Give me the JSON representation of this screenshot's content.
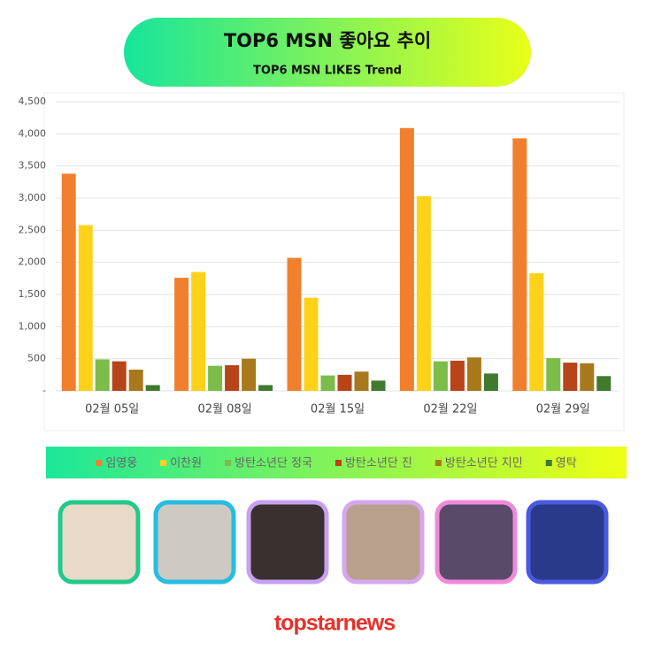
{
  "chart_data": {
    "type": "bar",
    "title": "TOP6 MSN 좋아요 추이",
    "subtitle": "TOP6 MSN LIKES Trend",
    "categories": [
      "02월 05일",
      "02월 08일",
      "02월 15일",
      "02월 22일",
      "02월 29일"
    ],
    "series": [
      {
        "name": "임영웅",
        "color": "#f0802e",
        "values": [
          3380,
          1760,
          2070,
          4090,
          3930
        ]
      },
      {
        "name": "이찬원",
        "color": "#ffd21a",
        "values": [
          2580,
          1850,
          1450,
          3030,
          1830
        ]
      },
      {
        "name": "방탄소년단 정국",
        "color": "#7cbc4a",
        "values": [
          490,
          390,
          240,
          460,
          510
        ]
      },
      {
        "name": "방탄소년단 진",
        "color": "#b8441a",
        "values": [
          460,
          400,
          250,
          470,
          440
        ]
      },
      {
        "name": "방탄소년단 지민",
        "color": "#a8781c",
        "values": [
          330,
          500,
          300,
          520,
          430
        ]
      },
      {
        "name": "영탁",
        "color": "#3f7a2e",
        "values": [
          90,
          90,
          160,
          270,
          230
        ]
      }
    ],
    "ylim": [
      0,
      4500
    ],
    "yticks": [
      {
        "value": 0,
        "label": "-"
      },
      500,
      {
        "value": 1000,
        "label": "1,000"
      },
      {
        "value": 1500,
        "label": "1,500"
      },
      {
        "value": 2000,
        "label": "2,000"
      },
      {
        "value": 2500,
        "label": "2,500"
      },
      {
        "value": 3000,
        "label": "3,000"
      },
      {
        "value": 3500,
        "label": "3,500"
      },
      {
        "value": 4000,
        "label": "4,000"
      },
      {
        "value": 4500,
        "label": "4,500"
      }
    ],
    "grid": true,
    "legend": "bottom"
  },
  "footer": "topstarnews"
}
